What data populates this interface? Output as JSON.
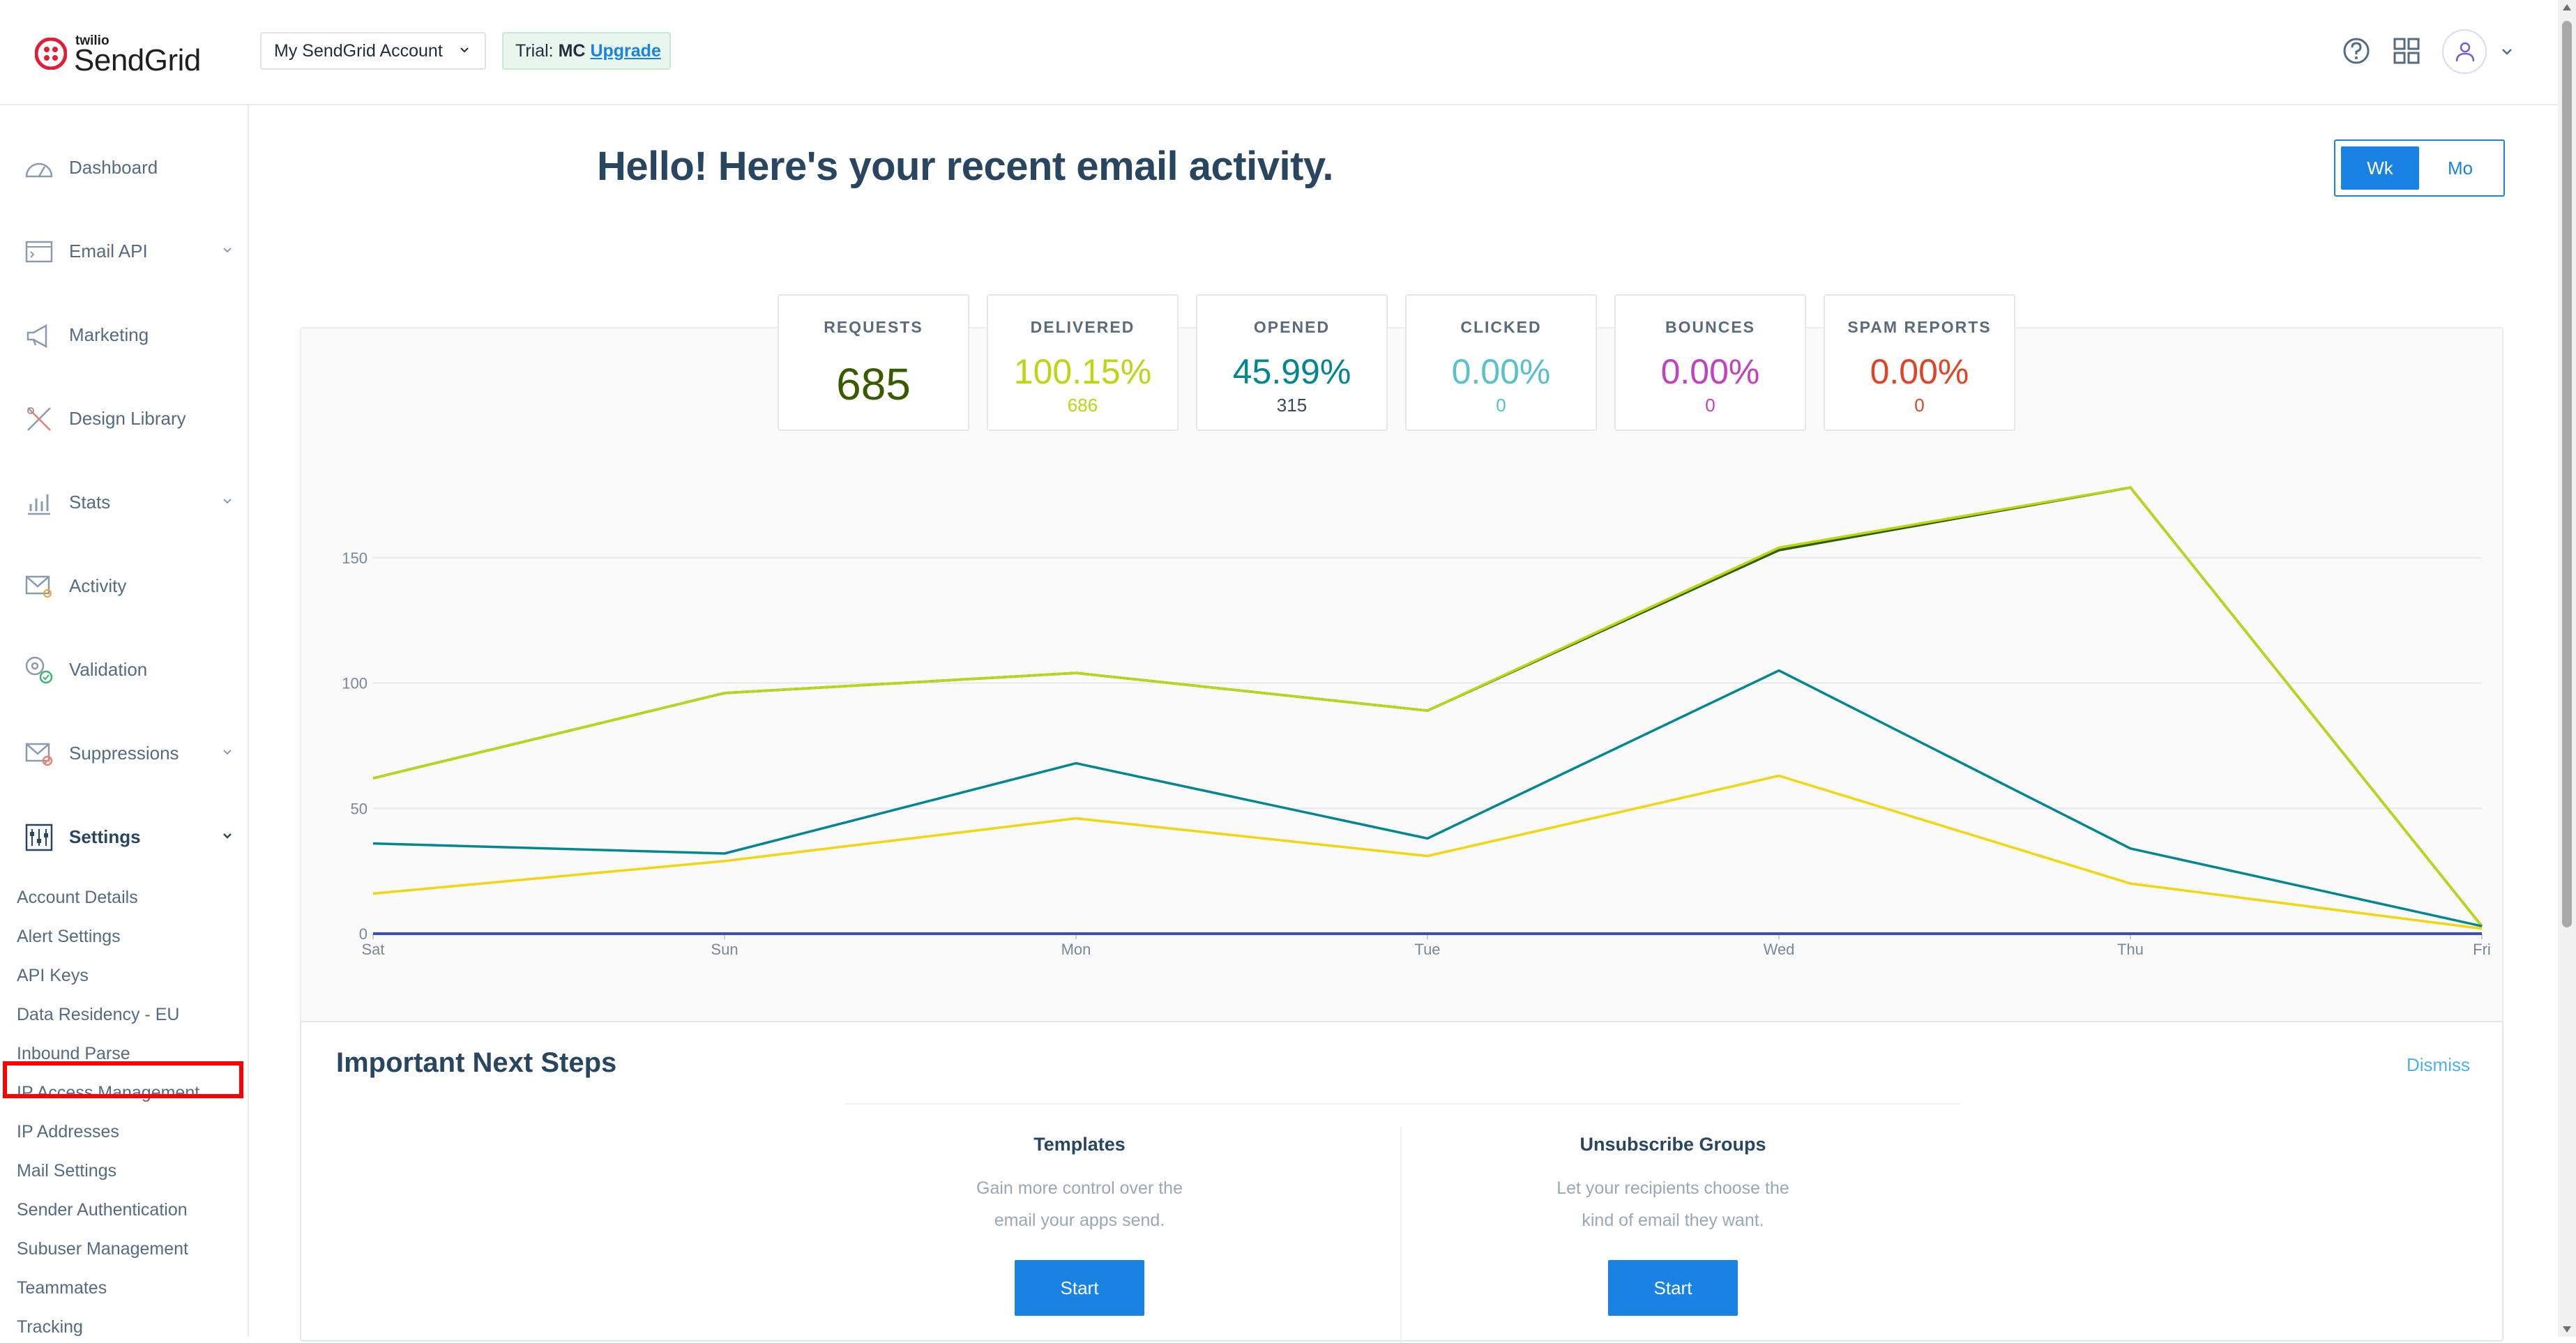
{
  "header": {
    "logo_small": "twilio",
    "logo_text": "SendGrid",
    "account_label": "My SendGrid Account",
    "trial_prefix": "Trial:",
    "trial_plan": "MC",
    "upgrade_label": "Upgrade",
    "icons": [
      "help-icon",
      "apps-grid-icon",
      "user-icon",
      "chevron-down-icon"
    ]
  },
  "sidebar": {
    "items": [
      {
        "label": "Dashboard",
        "icon": "dashboard-icon",
        "has_chevron": false
      },
      {
        "label": "Email API",
        "icon": "email-api-icon",
        "has_chevron": true
      },
      {
        "label": "Marketing",
        "icon": "megaphone-icon",
        "has_chevron": false
      },
      {
        "label": "Design Library",
        "icon": "design-tools-icon",
        "has_chevron": false
      },
      {
        "label": "Stats",
        "icon": "stats-icon",
        "has_chevron": true
      },
      {
        "label": "Activity",
        "icon": "activity-icon",
        "has_chevron": false
      },
      {
        "label": "Validation",
        "icon": "validation-icon",
        "has_chevron": false
      },
      {
        "label": "Suppressions",
        "icon": "suppressions-icon",
        "has_chevron": true
      },
      {
        "label": "Settings",
        "icon": "settings-sliders-icon",
        "has_chevron": true,
        "active": true
      }
    ],
    "settings_sub": [
      "Account Details",
      "Alert Settings",
      "API Keys",
      "Data Residency - EU",
      "Inbound Parse",
      "IP Access Management",
      "IP Addresses",
      "Mail Settings",
      "Sender Authentication",
      "Subuser Management",
      "Teammates",
      "Tracking"
    ],
    "highlighted_sub": "API Keys",
    "highlight_color": "#ff0000"
  },
  "main": {
    "title": "Hello! Here's your recent email activity.",
    "toggle": {
      "week": "Wk",
      "month": "Mo",
      "selected": "Wk"
    },
    "stats": [
      {
        "label": "REQUESTS",
        "value": "685",
        "count": "",
        "color": "#3a5a00"
      },
      {
        "label": "DELIVERED",
        "value": "100.15%",
        "count": "686",
        "color": "#bcd514"
      },
      {
        "label": "OPENED",
        "value": "45.99%",
        "count": "315",
        "color": "#028690"
      },
      {
        "label": "CLICKED",
        "value": "0.00%",
        "count": "0",
        "color": "#59c1ca"
      },
      {
        "label": "BOUNCES",
        "value": "0.00%",
        "count": "0",
        "color": "#c042be"
      },
      {
        "label": "SPAM REPORTS",
        "value": "0.00%",
        "count": "0",
        "color": "#e04427"
      }
    ]
  },
  "chart_data": {
    "type": "line",
    "categories": [
      "Sat",
      "Sun",
      "Mon",
      "Tue",
      "Wed",
      "Thu",
      "Fri"
    ],
    "yticks": [
      0,
      50,
      100,
      150
    ],
    "ylim": [
      0,
      190
    ],
    "grid": true,
    "series": [
      {
        "values": [
          62,
          96,
          104,
          89,
          153,
          178,
          3
        ],
        "color": "#2e5f00"
      },
      {
        "values": [
          62,
          96,
          104,
          89,
          154,
          178,
          3
        ],
        "color": "#bcd514"
      },
      {
        "values": [
          36,
          32,
          68,
          38,
          105,
          34,
          3
        ],
        "color": "#028690"
      },
      {
        "values": [
          16,
          29,
          46,
          31,
          63,
          20,
          2
        ],
        "color": "#f3d610"
      },
      {
        "values": [
          0,
          0,
          0,
          0,
          0,
          0,
          0
        ],
        "color": "#3b4cc0"
      }
    ]
  },
  "next_steps": {
    "title": "Important Next Steps",
    "dismiss": "Dismiss",
    "cards": [
      {
        "title": "Templates",
        "desc": "Gain more control over the email your apps send.",
        "button": "Start"
      },
      {
        "title": "Unsubscribe Groups",
        "desc": "Let your recipients choose the kind of email they want.",
        "button": "Start"
      }
    ]
  }
}
